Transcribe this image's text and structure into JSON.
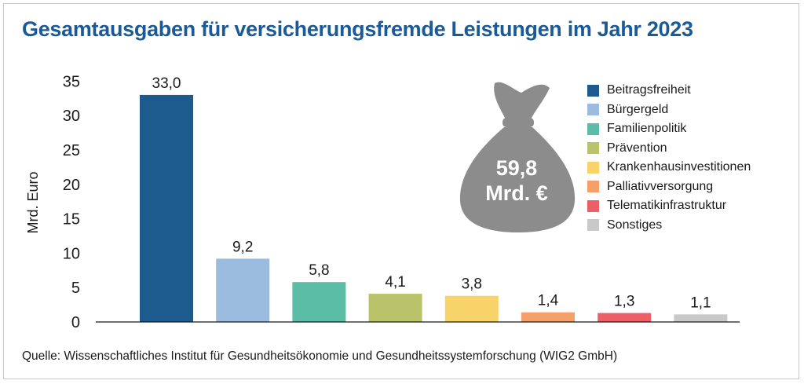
{
  "title": "Gesamtausgaben für versicherungsfremde Leistungen im Jahr 2023",
  "source": "Quelle: Wissenschaftliches Institut für Gesundheitsökonomie und Gesundheitssystemforschung (WIG2 GmbH)",
  "bag": {
    "value": "59,8",
    "unit": "Mrd. €",
    "icon": "money-bag-icon",
    "color": "#8c8c8c"
  },
  "chart_data": {
    "type": "bar",
    "title": "Gesamtausgaben für versicherungsfremde Leistungen im Jahr 2023",
    "ylabel": "Mrd. Euro",
    "xlabel": "",
    "ylim": [
      0,
      35
    ],
    "yticks": [
      "0",
      "5",
      "10",
      "15",
      "20",
      "25",
      "30",
      "35"
    ],
    "grid": false,
    "legend_position": "right",
    "categories": [
      "Beitragsfreiheit",
      "Bürgergeld",
      "Familienpolitik",
      "Prävention",
      "Krankenhausinvestitionen",
      "Palliativversorgung",
      "Telematikinfrastruktur",
      "Sonstiges"
    ],
    "values": [
      33.0,
      9.2,
      5.8,
      4.1,
      3.8,
      1.4,
      1.3,
      1.1
    ],
    "value_labels": [
      "33,0",
      "9,2",
      "5,8",
      "4,1",
      "3,8",
      "1,4",
      "1,3",
      "1,1"
    ],
    "colors": [
      "#1d5a8e",
      "#9bbcdf",
      "#5cbda6",
      "#b9c46a",
      "#f7d36a",
      "#f5a06a",
      "#ed5f67",
      "#c9c9c9"
    ]
  }
}
